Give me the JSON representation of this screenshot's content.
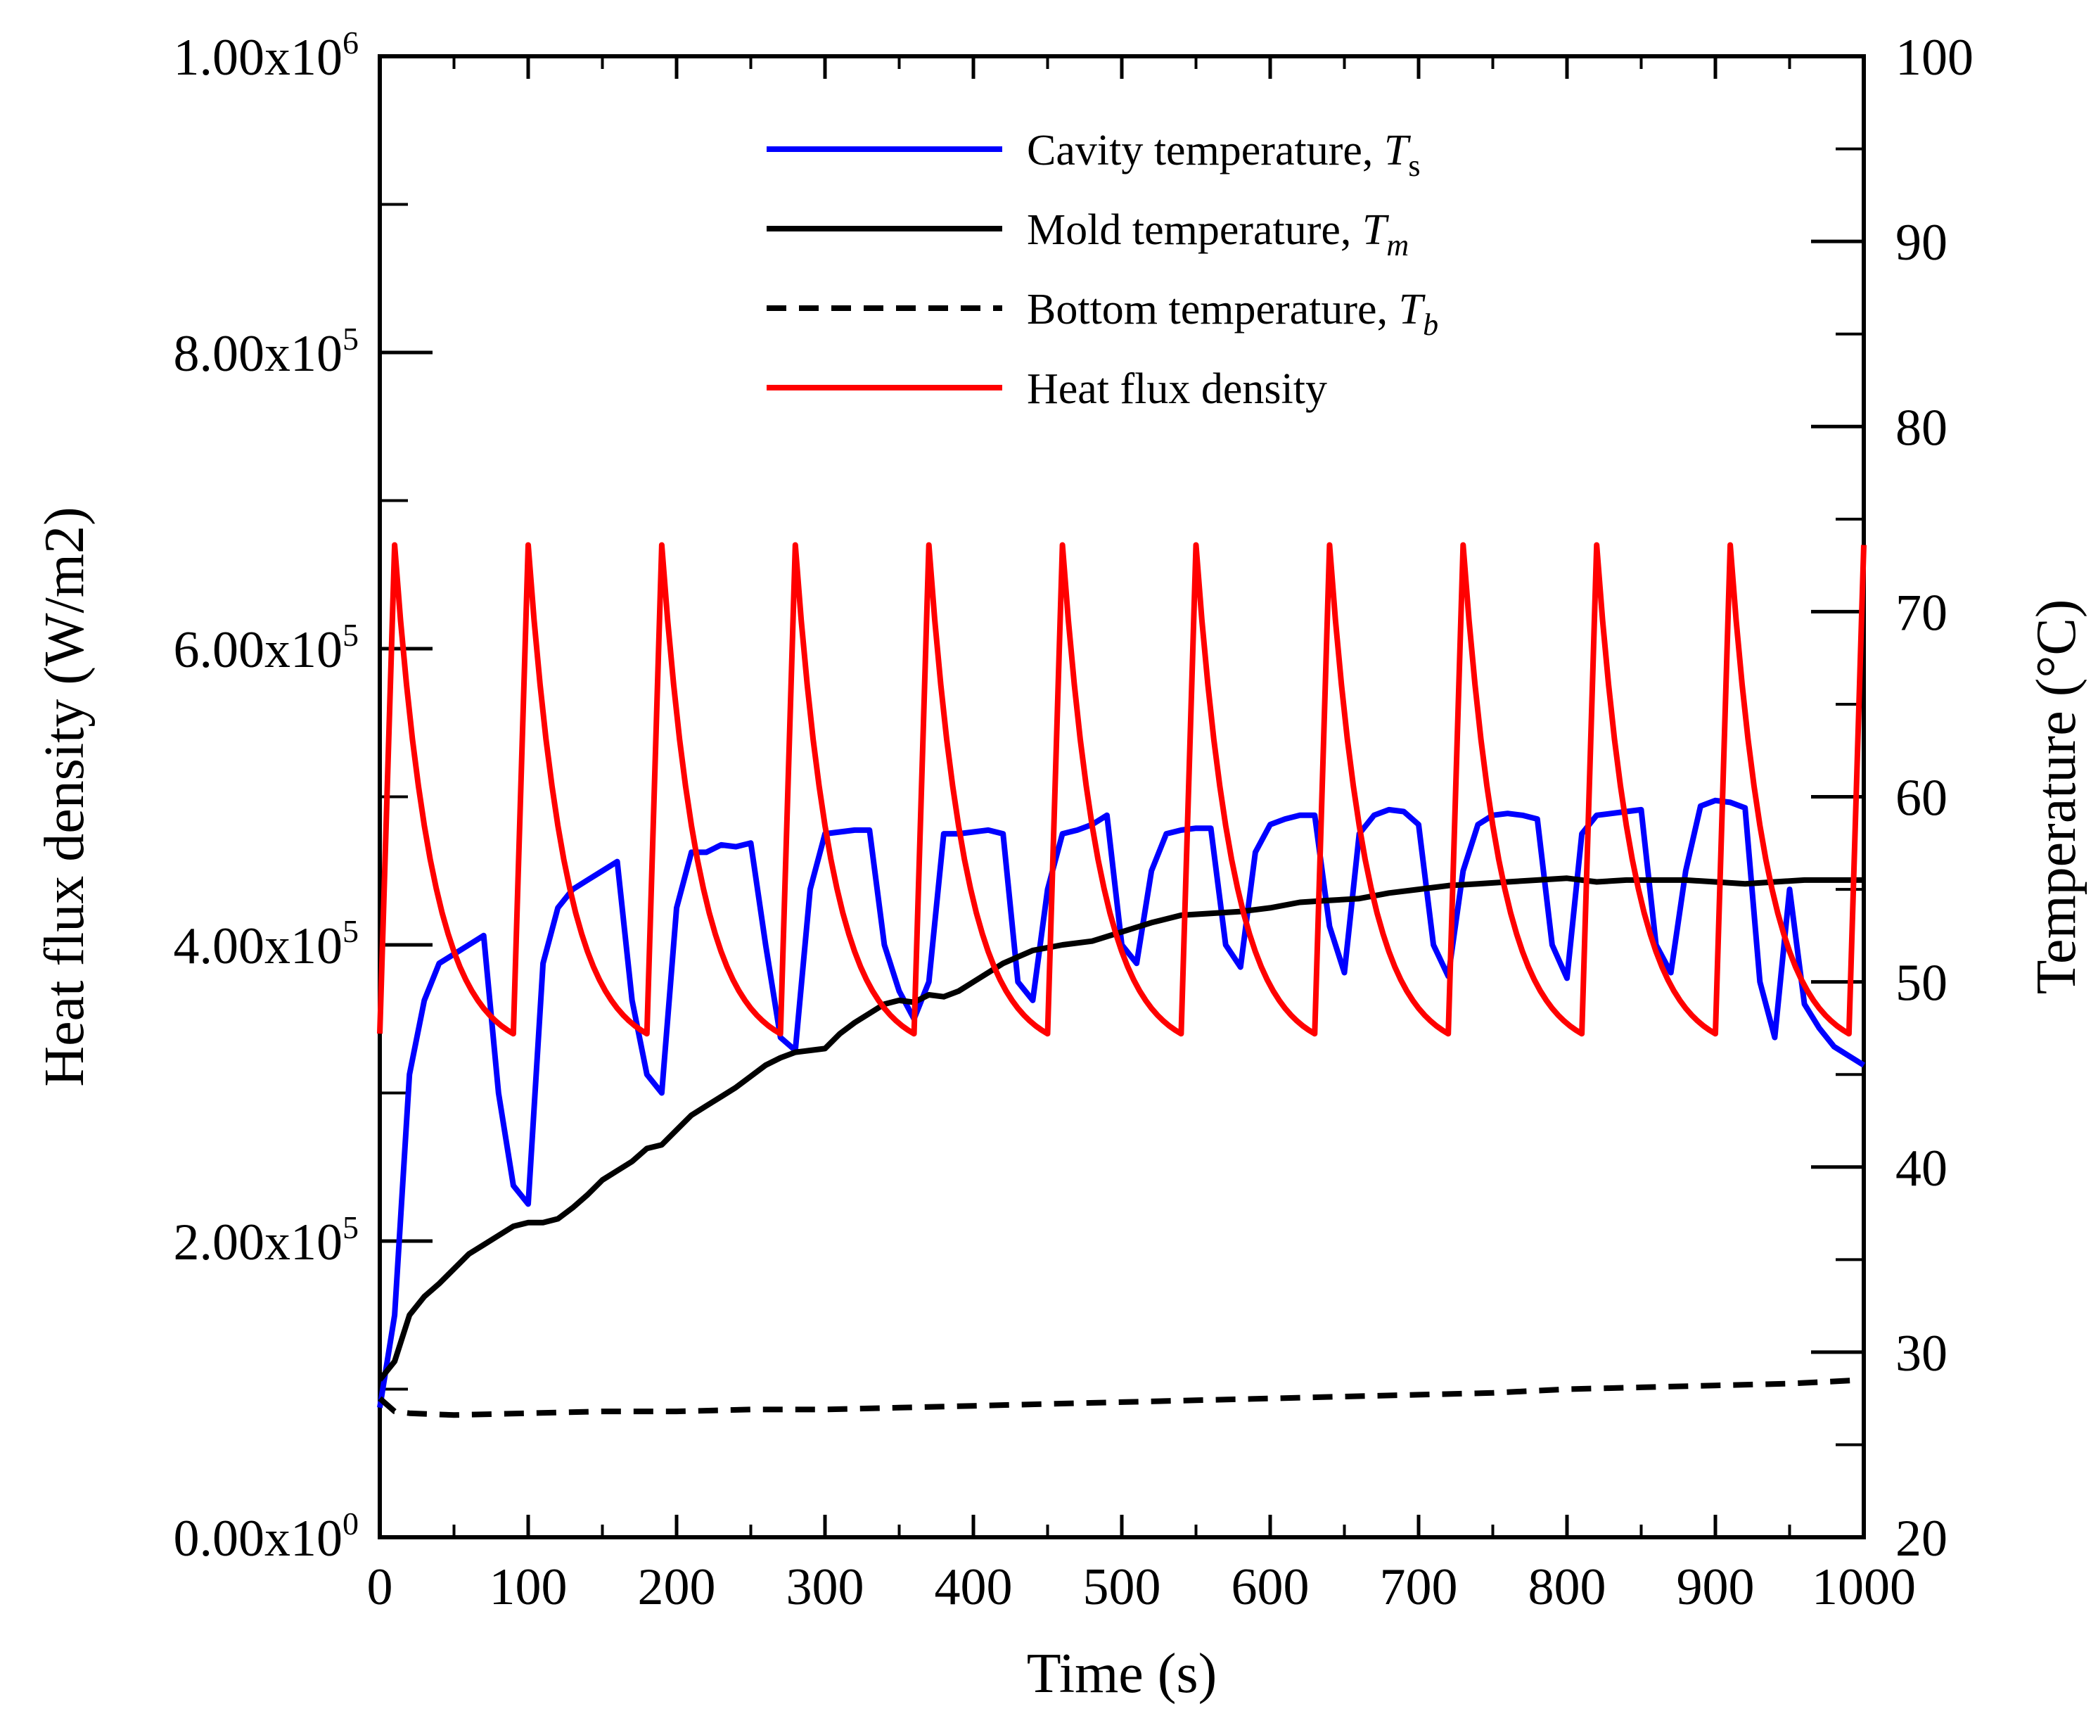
{
  "chart_data": {
    "type": "line",
    "title": "",
    "xlabel": "Time (s)",
    "ylabel_left": "Heat flux density (W/m2)",
    "ylabel_right": "Temperature (°C)",
    "xlim": [
      0,
      1000
    ],
    "ylim_left": [
      0,
      1000000
    ],
    "ylim_right": [
      20,
      100
    ],
    "x_ticks": [
      "0",
      "100",
      "200",
      "300",
      "400",
      "500",
      "600",
      "700",
      "800",
      "900",
      "1000"
    ],
    "y_left_ticks": [
      {
        "mantissa": "0.00x10",
        "exp": "0"
      },
      {
        "mantissa": "2.00x10",
        "exp": "5"
      },
      {
        "mantissa": "4.00x10",
        "exp": "5"
      },
      {
        "mantissa": "6.00x10",
        "exp": "5"
      },
      {
        "mantissa": "8.00x10",
        "exp": "5"
      },
      {
        "mantissa": "1.00x10",
        "exp": "6"
      }
    ],
    "y_right_ticks": [
      "20",
      "30",
      "40",
      "50",
      "60",
      "70",
      "80",
      "90",
      "100"
    ],
    "grid": false,
    "legend_position": "top-center",
    "series": [
      {
        "name": "Cavity temperature, T",
        "subscript": "s",
        "subscript_italic": false,
        "color": "#0000ff",
        "style": "solid",
        "axis": "right",
        "x": [
          0,
          10,
          20,
          30,
          40,
          50,
          60,
          70,
          80,
          90,
          100,
          110,
          120,
          130,
          140,
          150,
          160,
          170,
          180,
          190,
          200,
          210,
          220,
          230,
          240,
          250,
          260,
          270,
          280,
          290,
          300,
          310,
          320,
          330,
          340,
          350,
          360,
          370,
          380,
          390,
          400,
          410,
          420,
          430,
          440,
          450,
          460,
          470,
          480,
          490,
          500,
          510,
          520,
          530,
          540,
          550,
          560,
          570,
          580,
          590,
          600,
          610,
          620,
          630,
          640,
          650,
          660,
          670,
          680,
          690,
          700,
          710,
          720,
          730,
          740,
          750,
          760,
          770,
          780,
          790,
          800,
          810,
          820,
          830,
          840,
          850,
          860,
          870,
          880,
          890,
          900,
          910,
          920,
          930,
          940,
          950,
          960,
          970,
          980,
          990,
          1000
        ],
        "values": [
          27,
          32,
          45,
          49,
          51,
          51.5,
          52,
          52.5,
          44,
          39,
          38,
          51,
          54,
          55,
          55.5,
          56,
          56.5,
          49,
          45,
          44,
          54,
          57,
          57,
          57.4,
          57.3,
          57.5,
          52,
          47,
          46.3,
          55,
          58,
          58.1,
          58.2,
          58.2,
          52,
          49.5,
          48,
          50,
          58,
          58,
          58.1,
          58.2,
          58,
          50,
          49,
          55,
          58,
          58.2,
          58.5,
          59,
          52,
          51,
          56,
          58,
          58.2,
          58.3,
          58.3,
          52,
          50.8,
          57,
          58.5,
          58.8,
          59,
          59,
          53,
          50.5,
          58,
          59,
          59.3,
          59.2,
          58.5,
          52,
          50.3,
          56,
          58.5,
          59,
          59.1,
          59,
          58.8,
          52,
          50.2,
          58,
          59,
          59.1,
          59.2,
          59.3,
          52,
          50.5,
          56,
          59.5,
          59.8,
          59.7,
          59.4,
          50,
          47,
          55,
          48.8,
          47.5,
          46.5,
          46,
          45.5
        ]
      },
      {
        "name": "Mold temperature, T",
        "subscript": "m",
        "subscript_italic": true,
        "color": "#000000",
        "style": "solid",
        "axis": "right",
        "x": [
          0,
          10,
          20,
          30,
          40,
          50,
          60,
          70,
          80,
          90,
          100,
          110,
          120,
          130,
          140,
          150,
          160,
          170,
          180,
          190,
          200,
          210,
          220,
          230,
          240,
          250,
          260,
          270,
          280,
          290,
          300,
          310,
          320,
          330,
          340,
          350,
          360,
          370,
          380,
          390,
          400,
          420,
          440,
          460,
          480,
          500,
          520,
          540,
          560,
          580,
          600,
          620,
          640,
          660,
          680,
          700,
          720,
          740,
          760,
          780,
          800,
          820,
          840,
          860,
          880,
          900,
          920,
          940,
          960,
          980,
          1000
        ],
        "values": [
          28.5,
          29.5,
          32,
          33,
          33.7,
          34.5,
          35.3,
          35.8,
          36.3,
          36.8,
          37,
          37,
          37.2,
          37.8,
          38.5,
          39.3,
          39.8,
          40.3,
          41,
          41.2,
          42,
          42.8,
          43.3,
          43.8,
          44.3,
          44.9,
          45.5,
          45.9,
          46.2,
          46.3,
          46.4,
          47.2,
          47.8,
          48.3,
          48.8,
          49,
          48.9,
          49.3,
          49.2,
          49.5,
          50,
          51,
          51.7,
          52,
          52.2,
          52.7,
          53.2,
          53.6,
          53.7,
          53.8,
          54,
          54.3,
          54.4,
          54.5,
          54.8,
          55,
          55.2,
          55.3,
          55.4,
          55.5,
          55.6,
          55.4,
          55.5,
          55.5,
          55.5,
          55.4,
          55.3,
          55.4,
          55.5,
          55.5,
          55.5
        ]
      },
      {
        "name": "Bottom temperature, T",
        "subscript": "b",
        "subscript_italic": true,
        "color": "#000000",
        "style": "dashed",
        "axis": "right",
        "x": [
          0,
          10,
          20,
          50,
          100,
          150,
          200,
          250,
          300,
          350,
          400,
          450,
          500,
          550,
          600,
          650,
          700,
          750,
          800,
          850,
          900,
          950,
          1000
        ],
        "values": [
          27.5,
          26.8,
          26.7,
          26.6,
          26.7,
          26.8,
          26.8,
          26.9,
          26.9,
          27,
          27.1,
          27.2,
          27.3,
          27.4,
          27.5,
          27.6,
          27.7,
          27.8,
          28,
          28.1,
          28.2,
          28.3,
          28.5
        ]
      },
      {
        "name": "Heat flux density",
        "subscript": "",
        "subscript_italic": false,
        "color": "#ff0000",
        "style": "solid",
        "axis": "left",
        "cycle_period_s": 90,
        "peak": 670000,
        "trough": 340000,
        "description": "sawtooth: rises sharply at the start of each 90 s cycle, then decays to the trough"
      }
    ]
  }
}
